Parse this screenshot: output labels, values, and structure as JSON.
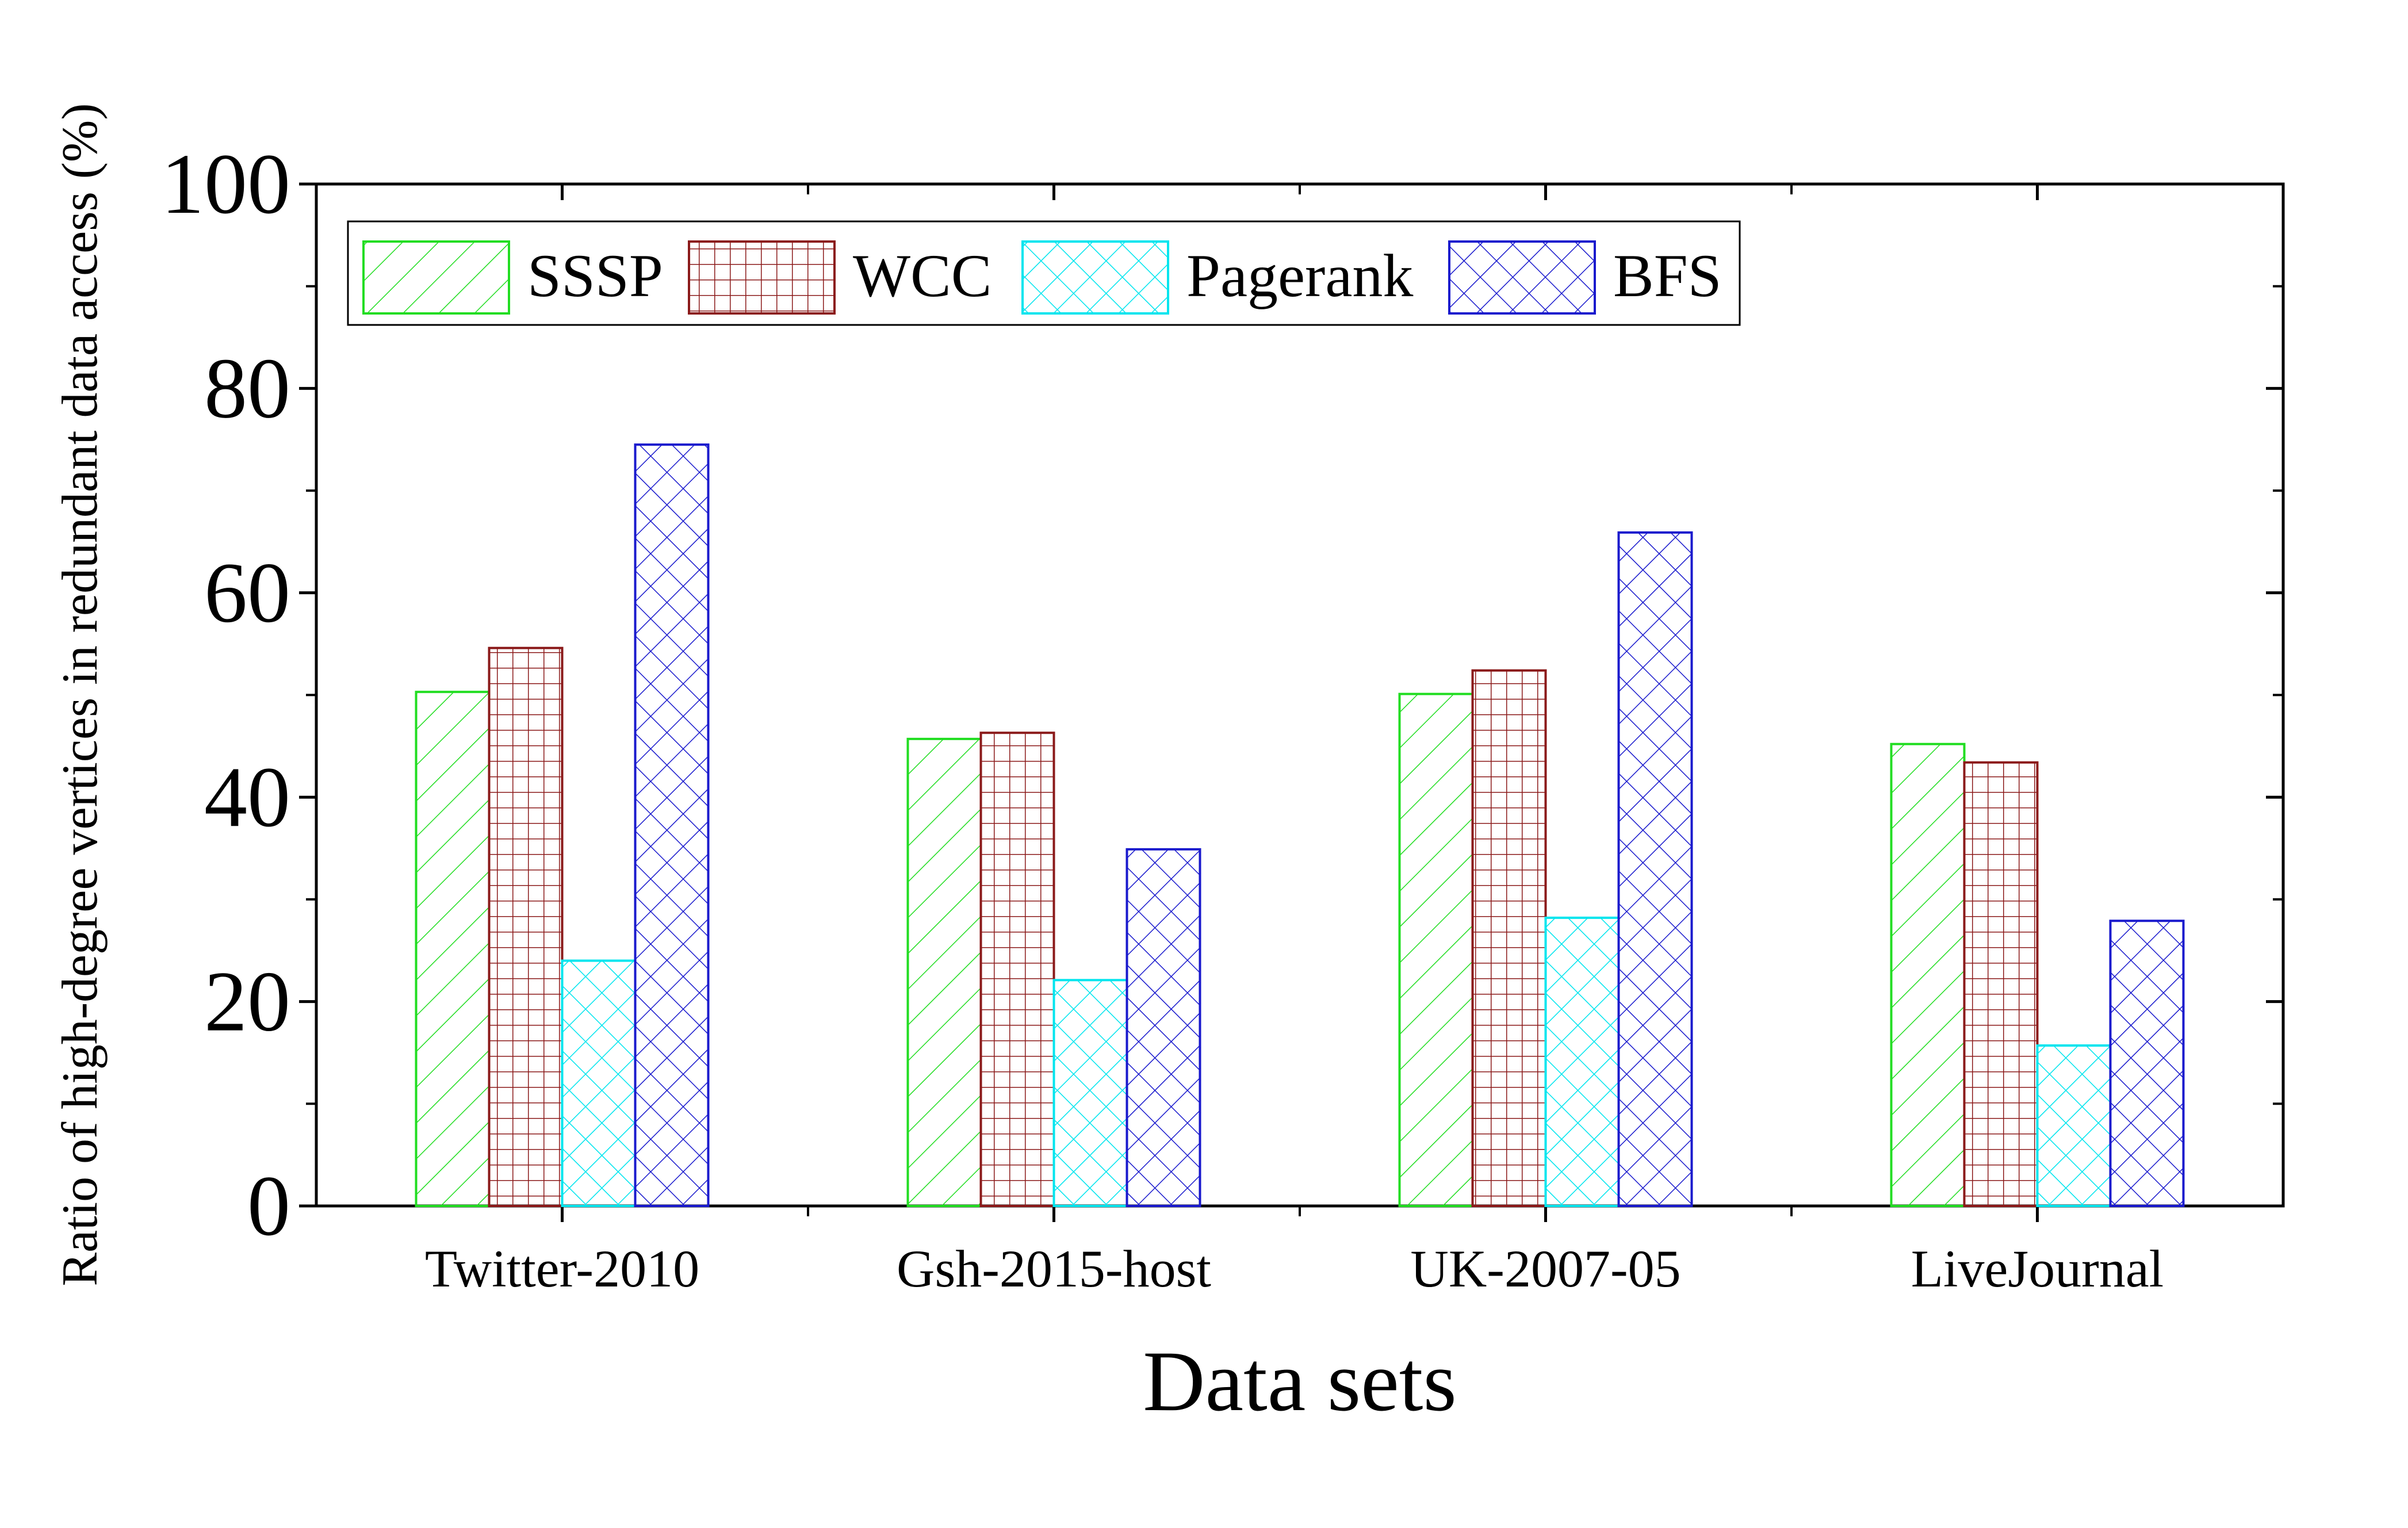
{
  "chart_data": {
    "type": "bar",
    "title": "",
    "xlabel": "Data sets",
    "ylabel": "Ratio of high-degree vertices in redundant data access (%)",
    "categories": [
      "Twitter-2010",
      "Gsh-2015-host",
      "UK-2007-05",
      "LiveJournal"
    ],
    "ylim": [
      0,
      100
    ],
    "yticks": [
      0,
      20,
      40,
      60,
      80,
      100
    ],
    "legend_position": "top-left",
    "grid": false,
    "series": [
      {
        "name": "SSSP",
        "color": "#22dd22",
        "pattern": "diagonal-hatch",
        "values": [
          50.3,
          45.7,
          50.1,
          45.2
        ]
      },
      {
        "name": "WCC",
        "color": "#8b1a1a",
        "pattern": "grid-hatch",
        "values": [
          54.6,
          46.3,
          52.4,
          43.4
        ]
      },
      {
        "name": "Pagerank",
        "color": "#00e5ee",
        "pattern": "cross-hatch",
        "values": [
          24.0,
          22.1,
          28.2,
          15.7
        ]
      },
      {
        "name": "BFS",
        "color": "#1a1acd",
        "pattern": "cross-hatch",
        "values": [
          74.5,
          34.9,
          65.9,
          27.9
        ]
      }
    ]
  }
}
